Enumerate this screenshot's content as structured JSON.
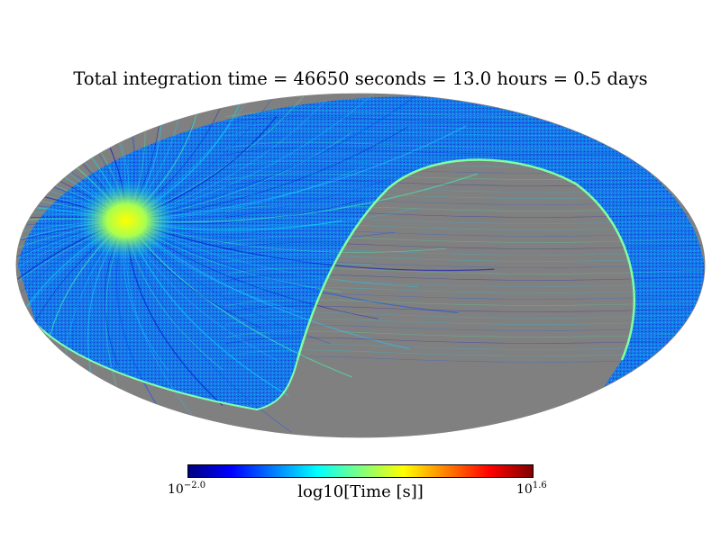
{
  "chart_data": {
    "type": "heatmap",
    "projection": "mollweide",
    "title": "Total integration time = 46650 seconds = 13.0 hours = 0.5 days",
    "colormap": "jet",
    "colorbar": {
      "label": "log10[Time [s]]",
      "min": {
        "base": "10",
        "exponent": "−2.0"
      },
      "max": {
        "base": "10",
        "exponent": "1.6"
      },
      "range_log10": [
        -2.0,
        1.6
      ]
    },
    "unobserved_color": "#808080",
    "hotspot_value_log10": 0.0
  }
}
